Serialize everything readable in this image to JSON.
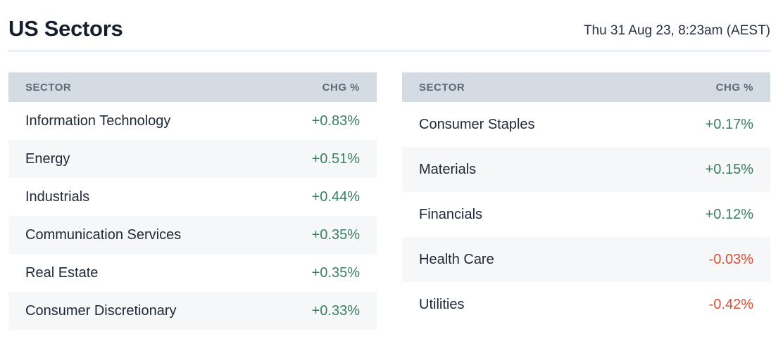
{
  "page": {
    "title": "US Sectors",
    "timestamp": "Thu 31 Aug 23, 8:23am (AEST)"
  },
  "colors": {
    "positive_value": "#3b8161",
    "negative_value": "#da4f35",
    "header_background": "#d5dbe2",
    "header_text": "#5a6a79",
    "alternate_row_background": "#f6f7f8",
    "title_text": "#161f2e",
    "row_text": "#1e2837",
    "divider": "#e9eff7"
  },
  "tables": [
    {
      "id": "left",
      "header": {
        "sector": "SECTOR",
        "chg": "CHG %"
      },
      "rows": [
        {
          "sector": "Information Technology",
          "chg": "+0.83%",
          "direction": "positive"
        },
        {
          "sector": "Energy",
          "chg": "+0.51%",
          "direction": "positive"
        },
        {
          "sector": "Industrials",
          "chg": "+0.44%",
          "direction": "positive"
        },
        {
          "sector": "Communication Services",
          "chg": "+0.35%",
          "direction": "positive"
        },
        {
          "sector": "Real Estate",
          "chg": "+0.35%",
          "direction": "positive"
        },
        {
          "sector": "Consumer Discretionary",
          "chg": "+0.33%",
          "direction": "positive"
        }
      ]
    },
    {
      "id": "right",
      "header": {
        "sector": "SECTOR",
        "chg": "CHG %"
      },
      "rows": [
        {
          "sector": "Consumer Staples",
          "chg": "+0.17%",
          "direction": "positive"
        },
        {
          "sector": "Materials",
          "chg": "+0.15%",
          "direction": "positive"
        },
        {
          "sector": "Financials",
          "chg": "+0.12%",
          "direction": "positive"
        },
        {
          "sector": "Health Care",
          "chg": "-0.03%",
          "direction": "negative"
        },
        {
          "sector": "Utilities",
          "chg": "-0.42%",
          "direction": "negative"
        }
      ]
    }
  ],
  "chart_data": [
    {
      "type": "table",
      "title": "US Sectors",
      "subtitle": "Thu 31 Aug 23, 8:23am (AEST)",
      "columns": [
        "SECTOR",
        "CHG %"
      ],
      "rows": [
        [
          "Information Technology",
          "+0.83%"
        ],
        [
          "Energy",
          "+0.51%"
        ],
        [
          "Industrials",
          "+0.44%"
        ],
        [
          "Communication Services",
          "+0.35%"
        ],
        [
          "Real Estate",
          "+0.35%"
        ],
        [
          "Consumer Discretionary",
          "+0.33%"
        ]
      ],
      "values_pct": [
        0.83,
        0.51,
        0.44,
        0.35,
        0.35,
        0.33
      ]
    },
    {
      "type": "table",
      "columns": [
        "SECTOR",
        "CHG %"
      ],
      "rows": [
        [
          "Consumer Staples",
          "+0.17%"
        ],
        [
          "Materials",
          "+0.15%"
        ],
        [
          "Financials",
          "+0.12%"
        ],
        [
          "Health Care",
          "-0.03%"
        ],
        [
          "Utilities",
          "-0.42%"
        ]
      ],
      "values_pct": [
        0.17,
        0.15,
        0.12,
        -0.03,
        -0.42
      ]
    }
  ]
}
